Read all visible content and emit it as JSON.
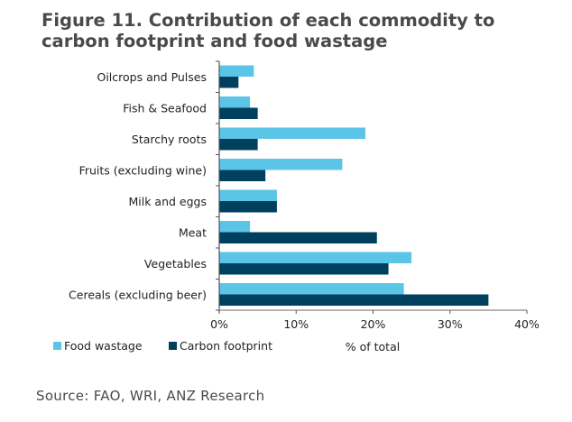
{
  "chart_data": {
    "type": "bar",
    "orientation": "horizontal",
    "title": "Figure 11. Contribution of each commodity to carbon footprint and food wastage",
    "title_line1": "Figure 11. Contribution of each commodity to",
    "title_line2": "carbon footprint and food wastage",
    "categories": [
      "Oilcrops and Pulses",
      "Fish & Seafood",
      "Starchy roots",
      "Fruits (excluding wine)",
      "Milk and eggs",
      "Meat",
      "Vegetables",
      "Cereals (excluding beer)"
    ],
    "series": [
      {
        "name": "Food wastage",
        "color": "#5BC5E8",
        "values": [
          4.5,
          4,
          19,
          16,
          7.5,
          4,
          25,
          24
        ]
      },
      {
        "name": "Carbon footprint",
        "color": "#00405F",
        "values": [
          2.5,
          5,
          5,
          6,
          7.5,
          20.5,
          22,
          35
        ]
      }
    ],
    "xlabel": "% of total",
    "ylabel": "",
    "xlim": [
      0,
      40
    ],
    "xticks": [
      0,
      10,
      20,
      30,
      40
    ],
    "xtick_labels": [
      "0%",
      "10%",
      "20%",
      "30%",
      "40%"
    ],
    "grid": false,
    "legend_position": "bottom-left"
  },
  "source": "Source: FAO, WRI, ANZ Research"
}
